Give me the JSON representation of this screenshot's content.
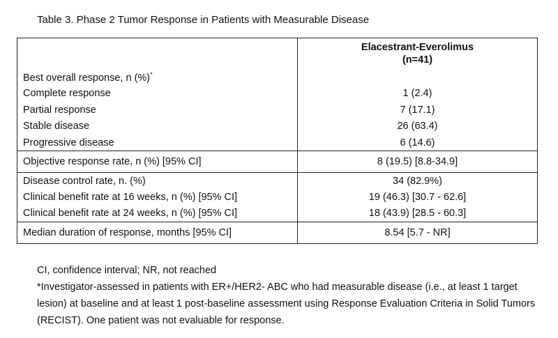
{
  "caption": "Table 3. Phase 2 Tumor Response in Patients with Measurable Disease",
  "header": {
    "col_label": "",
    "col_value_line1": "Elacestrant-Everolimus",
    "col_value_line2": "(n=41)"
  },
  "best_response": {
    "label": "Best overall response, n (%)",
    "marker": "*",
    "rows": [
      {
        "label": "Complete response",
        "value": "1 (2.4)"
      },
      {
        "label": "Partial response",
        "value": "7 (17.1)"
      },
      {
        "label": "Stable disease",
        "value": "26 (63.4)"
      },
      {
        "label": "Progressive disease",
        "value": "6 (14.6)"
      }
    ]
  },
  "orr": {
    "label": "Objective response rate, n (%) [95% CI]",
    "value": "8 (19.5) [8.8-34.9]"
  },
  "dcr": {
    "label": "Disease control rate, n. (%)",
    "value": "34 (82.9%)",
    "rows": [
      {
        "label": "Clinical benefit rate at 16 weeks, n (%) [95% CI]",
        "value": "19 (46.3) [30.7 - 62.6]"
      },
      {
        "label": "Clinical benefit rate at 24 weeks, n (%) [95% CI]",
        "value": "18 (43.9) [28.5 - 60.3]"
      }
    ]
  },
  "mdr": {
    "label": "Median duration of response, months [95% CI]",
    "value": "8.54 [5.7 - NR]"
  },
  "footnotes": {
    "abbrev": "CI, confidence interval; NR, not reached",
    "note": "*Investigator-assessed in patients with ER+/HER2- ABC who had measurable disease (i.e., at least 1 target lesion) at baseline and at least 1 post-baseline assessment using Response Evaluation Criteria in Solid Tumors (RECIST). One patient was not evaluable for response."
  }
}
